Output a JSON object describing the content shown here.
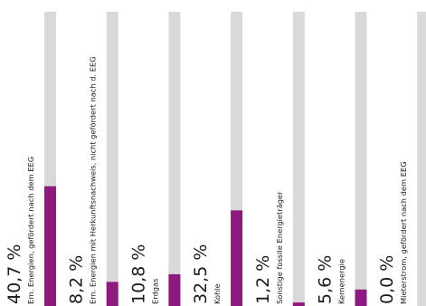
{
  "chart_data": {
    "type": "bar",
    "orientation": "vertical",
    "value_unit": "%",
    "ylim": [
      0,
      100
    ],
    "grid": false,
    "legend": "none",
    "colors": {
      "fill": "#8e1a7f",
      "track": "#d9d9d9"
    },
    "series": [
      {
        "categories": [
          "Ern. Energien, gefördert nach dem EEG",
          "Ern. Energien mit Herkunftsnachweis, nicht gefördert nach d. EEG",
          "Erdgas",
          "Kohle",
          "Sonstige fossile Energieträger",
          "Kernenergie",
          "Mieterstrom, gefördert nach dem EEG"
        ],
        "values": [
          40.7,
          8.2,
          10.8,
          32.5,
          1.2,
          5.6,
          0.0
        ],
        "labels": [
          "40,7 %",
          "8,2 %",
          "10,8 %",
          "32,5 %",
          "1,2 %",
          "5,6 %",
          "0,0 %"
        ]
      }
    ]
  }
}
